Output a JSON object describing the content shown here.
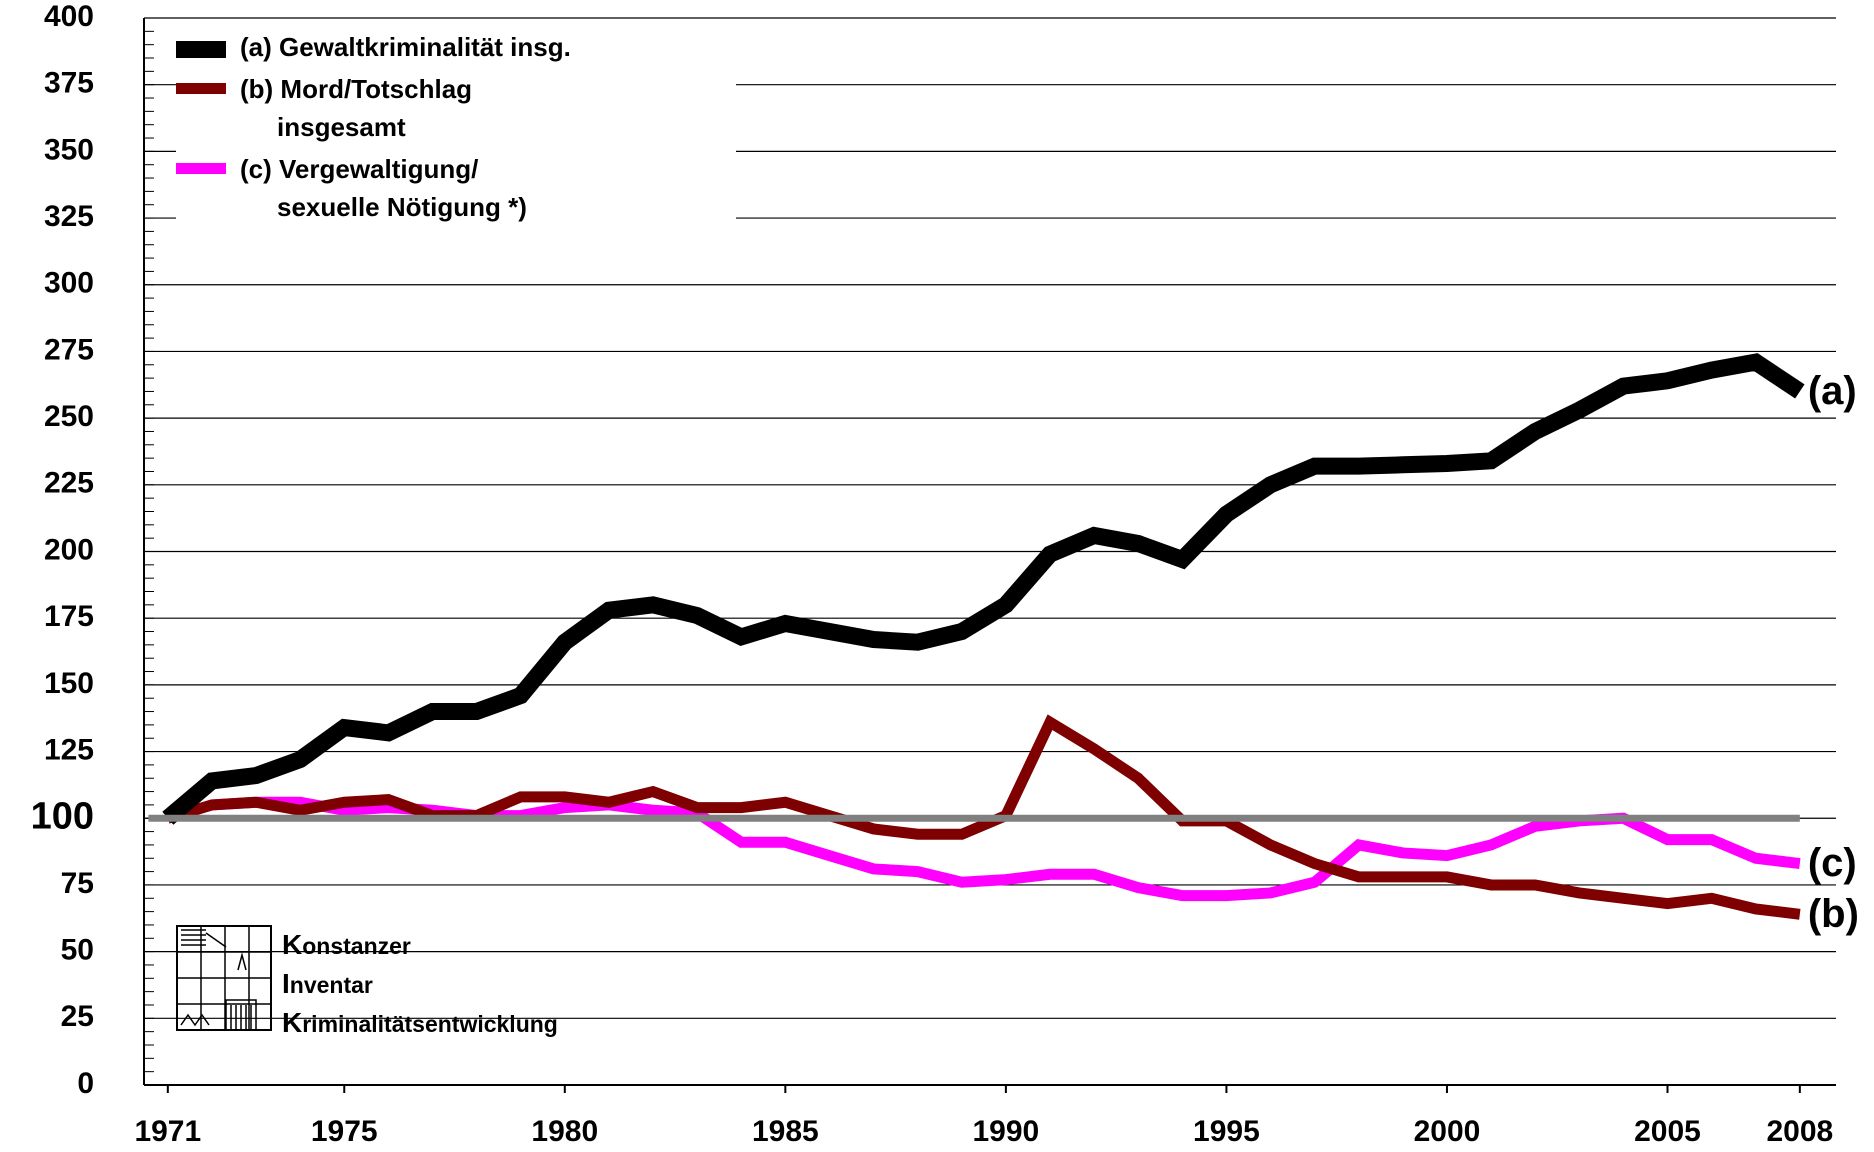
{
  "chart_data": {
    "type": "line",
    "x": [
      1971,
      1972,
      1973,
      1974,
      1975,
      1976,
      1977,
      1978,
      1979,
      1980,
      1981,
      1982,
      1983,
      1984,
      1985,
      1986,
      1987,
      1988,
      1989,
      1990,
      1991,
      1992,
      1993,
      1994,
      1995,
      1996,
      1997,
      1998,
      1999,
      2000,
      2001,
      2002,
      2003,
      2004,
      2005,
      2006,
      2007,
      2008
    ],
    "series": [
      {
        "name": "(a) Gewaltkriminalität insg.",
        "color": "#000000",
        "values": [
          100,
          114,
          116,
          122,
          134,
          132,
          140,
          140,
          146,
          166,
          178,
          180,
          176,
          168,
          173,
          170,
          167,
          166,
          170,
          180,
          199,
          206,
          203,
          197,
          214,
          225,
          232,
          232,
          232.5,
          233,
          234,
          245,
          253,
          262,
          264,
          268,
          271,
          260
        ]
      },
      {
        "name": "(b) Mord/Totschlag insgesamt",
        "color": "#7f0000",
        "values": [
          100,
          105,
          106,
          103,
          106,
          107,
          101,
          101,
          108,
          108,
          106,
          110,
          104,
          104,
          106,
          101,
          96,
          94,
          94,
          101,
          136,
          126,
          115,
          99,
          99,
          90,
          83,
          78,
          78,
          78,
          75,
          75,
          72,
          70,
          68,
          70,
          66,
          64
        ]
      },
      {
        "name": "(c) Vergewaltigung/ sexuelle Nötigung *)",
        "color": "#ff00ff",
        "values": [
          100,
          105,
          106,
          106,
          103,
          104,
          103,
          101,
          101,
          104,
          105,
          103,
          102,
          91,
          91,
          86,
          81,
          80,
          76,
          77,
          79,
          79,
          74,
          71,
          71,
          72,
          76,
          90,
          87,
          86,
          90,
          97,
          99,
          100,
          92,
          92,
          85,
          83
        ]
      }
    ],
    "end_labels": [
      "(a)",
      "(b)",
      "(c)"
    ],
    "reference": {
      "value": 100,
      "color": "#808080"
    },
    "xlim": [
      1970.46,
      2008.82
    ],
    "xticks": [
      1971,
      1975,
      1980,
      1985,
      1990,
      1995,
      2000,
      2005,
      2008
    ],
    "ylim": [
      0,
      400
    ],
    "yticks": [
      0,
      25,
      50,
      75,
      100,
      125,
      150,
      175,
      200,
      225,
      250,
      275,
      300,
      325,
      350,
      375,
      400
    ],
    "grid": true,
    "legend": "top-left",
    "logo": [
      "Konstanzer",
      "Inventar",
      "Kriminalitätsentwicklung"
    ]
  }
}
